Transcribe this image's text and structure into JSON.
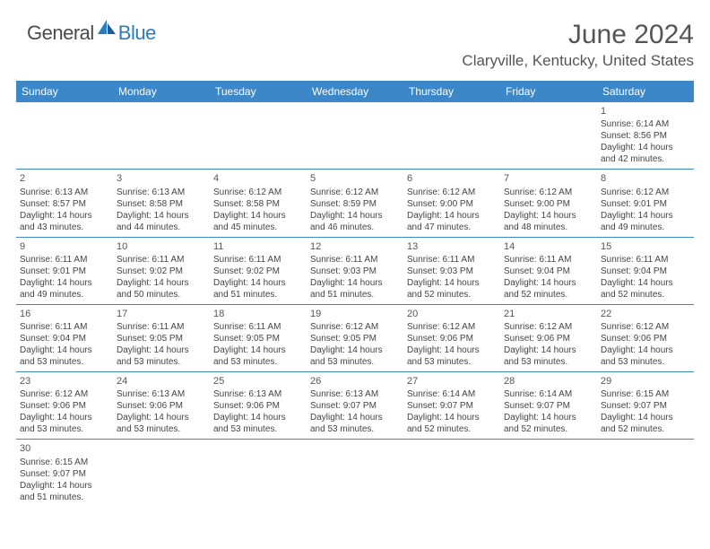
{
  "logo": {
    "general": "General",
    "blue": "Blue"
  },
  "title": "June 2024",
  "location": "Claryville, Kentucky, United States",
  "weekdays": [
    "Sunday",
    "Monday",
    "Tuesday",
    "Wednesday",
    "Thursday",
    "Friday",
    "Saturday"
  ],
  "colors": {
    "headerBg": "#3b87c8",
    "headerText": "#ffffff",
    "rowBorder": "#3b87c8",
    "textDark": "#444444",
    "titleGray": "#555555",
    "logoGray": "#4a4a4a",
    "logoBlue": "#2b7bbf"
  },
  "weeks": [
    [
      {
        "n": "",
        "sr": "",
        "ss": "",
        "d1": "",
        "d2": ""
      },
      {
        "n": "",
        "sr": "",
        "ss": "",
        "d1": "",
        "d2": ""
      },
      {
        "n": "",
        "sr": "",
        "ss": "",
        "d1": "",
        "d2": ""
      },
      {
        "n": "",
        "sr": "",
        "ss": "",
        "d1": "",
        "d2": ""
      },
      {
        "n": "",
        "sr": "",
        "ss": "",
        "d1": "",
        "d2": ""
      },
      {
        "n": "",
        "sr": "",
        "ss": "",
        "d1": "",
        "d2": ""
      },
      {
        "n": "1",
        "sr": "Sunrise: 6:14 AM",
        "ss": "Sunset: 8:56 PM",
        "d1": "Daylight: 14 hours",
        "d2": "and 42 minutes."
      }
    ],
    [
      {
        "n": "2",
        "sr": "Sunrise: 6:13 AM",
        "ss": "Sunset: 8:57 PM",
        "d1": "Daylight: 14 hours",
        "d2": "and 43 minutes."
      },
      {
        "n": "3",
        "sr": "Sunrise: 6:13 AM",
        "ss": "Sunset: 8:58 PM",
        "d1": "Daylight: 14 hours",
        "d2": "and 44 minutes."
      },
      {
        "n": "4",
        "sr": "Sunrise: 6:12 AM",
        "ss": "Sunset: 8:58 PM",
        "d1": "Daylight: 14 hours",
        "d2": "and 45 minutes."
      },
      {
        "n": "5",
        "sr": "Sunrise: 6:12 AM",
        "ss": "Sunset: 8:59 PM",
        "d1": "Daylight: 14 hours",
        "d2": "and 46 minutes."
      },
      {
        "n": "6",
        "sr": "Sunrise: 6:12 AM",
        "ss": "Sunset: 9:00 PM",
        "d1": "Daylight: 14 hours",
        "d2": "and 47 minutes."
      },
      {
        "n": "7",
        "sr": "Sunrise: 6:12 AM",
        "ss": "Sunset: 9:00 PM",
        "d1": "Daylight: 14 hours",
        "d2": "and 48 minutes."
      },
      {
        "n": "8",
        "sr": "Sunrise: 6:12 AM",
        "ss": "Sunset: 9:01 PM",
        "d1": "Daylight: 14 hours",
        "d2": "and 49 minutes."
      }
    ],
    [
      {
        "n": "9",
        "sr": "Sunrise: 6:11 AM",
        "ss": "Sunset: 9:01 PM",
        "d1": "Daylight: 14 hours",
        "d2": "and 49 minutes."
      },
      {
        "n": "10",
        "sr": "Sunrise: 6:11 AM",
        "ss": "Sunset: 9:02 PM",
        "d1": "Daylight: 14 hours",
        "d2": "and 50 minutes."
      },
      {
        "n": "11",
        "sr": "Sunrise: 6:11 AM",
        "ss": "Sunset: 9:02 PM",
        "d1": "Daylight: 14 hours",
        "d2": "and 51 minutes."
      },
      {
        "n": "12",
        "sr": "Sunrise: 6:11 AM",
        "ss": "Sunset: 9:03 PM",
        "d1": "Daylight: 14 hours",
        "d2": "and 51 minutes."
      },
      {
        "n": "13",
        "sr": "Sunrise: 6:11 AM",
        "ss": "Sunset: 9:03 PM",
        "d1": "Daylight: 14 hours",
        "d2": "and 52 minutes."
      },
      {
        "n": "14",
        "sr": "Sunrise: 6:11 AM",
        "ss": "Sunset: 9:04 PM",
        "d1": "Daylight: 14 hours",
        "d2": "and 52 minutes."
      },
      {
        "n": "15",
        "sr": "Sunrise: 6:11 AM",
        "ss": "Sunset: 9:04 PM",
        "d1": "Daylight: 14 hours",
        "d2": "and 52 minutes."
      }
    ],
    [
      {
        "n": "16",
        "sr": "Sunrise: 6:11 AM",
        "ss": "Sunset: 9:04 PM",
        "d1": "Daylight: 14 hours",
        "d2": "and 53 minutes."
      },
      {
        "n": "17",
        "sr": "Sunrise: 6:11 AM",
        "ss": "Sunset: 9:05 PM",
        "d1": "Daylight: 14 hours",
        "d2": "and 53 minutes."
      },
      {
        "n": "18",
        "sr": "Sunrise: 6:11 AM",
        "ss": "Sunset: 9:05 PM",
        "d1": "Daylight: 14 hours",
        "d2": "and 53 minutes."
      },
      {
        "n": "19",
        "sr": "Sunrise: 6:12 AM",
        "ss": "Sunset: 9:05 PM",
        "d1": "Daylight: 14 hours",
        "d2": "and 53 minutes."
      },
      {
        "n": "20",
        "sr": "Sunrise: 6:12 AM",
        "ss": "Sunset: 9:06 PM",
        "d1": "Daylight: 14 hours",
        "d2": "and 53 minutes."
      },
      {
        "n": "21",
        "sr": "Sunrise: 6:12 AM",
        "ss": "Sunset: 9:06 PM",
        "d1": "Daylight: 14 hours",
        "d2": "and 53 minutes."
      },
      {
        "n": "22",
        "sr": "Sunrise: 6:12 AM",
        "ss": "Sunset: 9:06 PM",
        "d1": "Daylight: 14 hours",
        "d2": "and 53 minutes."
      }
    ],
    [
      {
        "n": "23",
        "sr": "Sunrise: 6:12 AM",
        "ss": "Sunset: 9:06 PM",
        "d1": "Daylight: 14 hours",
        "d2": "and 53 minutes."
      },
      {
        "n": "24",
        "sr": "Sunrise: 6:13 AM",
        "ss": "Sunset: 9:06 PM",
        "d1": "Daylight: 14 hours",
        "d2": "and 53 minutes."
      },
      {
        "n": "25",
        "sr": "Sunrise: 6:13 AM",
        "ss": "Sunset: 9:06 PM",
        "d1": "Daylight: 14 hours",
        "d2": "and 53 minutes."
      },
      {
        "n": "26",
        "sr": "Sunrise: 6:13 AM",
        "ss": "Sunset: 9:07 PM",
        "d1": "Daylight: 14 hours",
        "d2": "and 53 minutes."
      },
      {
        "n": "27",
        "sr": "Sunrise: 6:14 AM",
        "ss": "Sunset: 9:07 PM",
        "d1": "Daylight: 14 hours",
        "d2": "and 52 minutes."
      },
      {
        "n": "28",
        "sr": "Sunrise: 6:14 AM",
        "ss": "Sunset: 9:07 PM",
        "d1": "Daylight: 14 hours",
        "d2": "and 52 minutes."
      },
      {
        "n": "29",
        "sr": "Sunrise: 6:15 AM",
        "ss": "Sunset: 9:07 PM",
        "d1": "Daylight: 14 hours",
        "d2": "and 52 minutes."
      }
    ],
    [
      {
        "n": "30",
        "sr": "Sunrise: 6:15 AM",
        "ss": "Sunset: 9:07 PM",
        "d1": "Daylight: 14 hours",
        "d2": "and 51 minutes."
      },
      {
        "n": "",
        "sr": "",
        "ss": "",
        "d1": "",
        "d2": ""
      },
      {
        "n": "",
        "sr": "",
        "ss": "",
        "d1": "",
        "d2": ""
      },
      {
        "n": "",
        "sr": "",
        "ss": "",
        "d1": "",
        "d2": ""
      },
      {
        "n": "",
        "sr": "",
        "ss": "",
        "d1": "",
        "d2": ""
      },
      {
        "n": "",
        "sr": "",
        "ss": "",
        "d1": "",
        "d2": ""
      },
      {
        "n": "",
        "sr": "",
        "ss": "",
        "d1": "",
        "d2": ""
      }
    ]
  ]
}
